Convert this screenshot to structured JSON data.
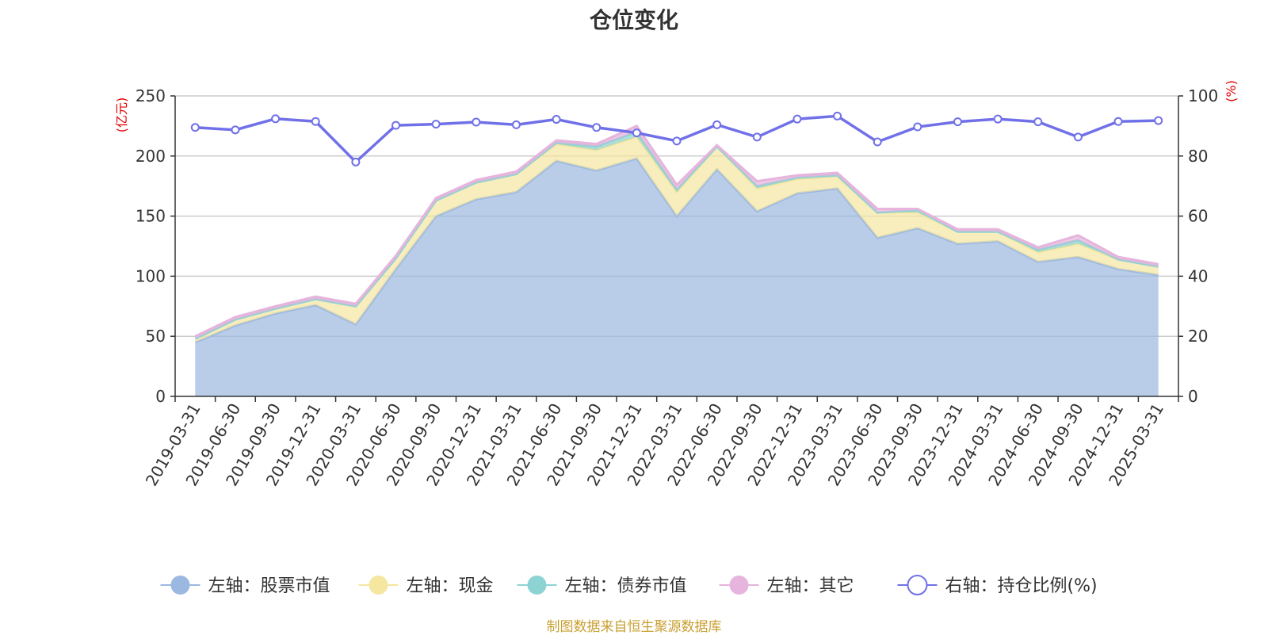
{
  "chart_data": {
    "type": "area",
    "title": "仓位变化",
    "left_axis_unit": "(亿元)",
    "right_axis_unit": "(%)",
    "left_ylim": [
      0,
      250
    ],
    "left_ticks": [
      0,
      50,
      100,
      150,
      200,
      250
    ],
    "right_ylim": [
      0,
      100
    ],
    "right_ticks": [
      0,
      20,
      40,
      60,
      80,
      100
    ],
    "grid": true,
    "legend_position": "bottom",
    "categories": [
      "2019-03-31",
      "2019-06-30",
      "2019-09-30",
      "2019-12-31",
      "2020-03-31",
      "2020-06-30",
      "2020-09-30",
      "2020-12-31",
      "2021-03-31",
      "2021-06-30",
      "2021-09-30",
      "2021-12-31",
      "2022-03-31",
      "2022-06-30",
      "2022-09-30",
      "2022-12-31",
      "2023-03-31",
      "2023-06-30",
      "2023-09-30",
      "2023-12-31",
      "2024-03-31",
      "2024-06-30",
      "2024-09-30",
      "2024-12-31",
      "2025-03-31"
    ],
    "series": [
      {
        "name": "左轴：股票市值",
        "axis": "left",
        "stack": true,
        "color": "#9bb8e0",
        "values": [
          45,
          59,
          69,
          76,
          60,
          106,
          150,
          164,
          170,
          196,
          188,
          198,
          150,
          189,
          154,
          169,
          173,
          132,
          140,
          127,
          129,
          112,
          116,
          106,
          101
        ]
      },
      {
        "name": "左轴：现金",
        "axis": "left",
        "stack": true,
        "color": "#f5e6a0",
        "values": [
          3,
          5,
          4,
          5,
          15,
          9,
          13,
          14,
          15,
          14,
          17,
          18,
          20,
          19,
          19,
          12,
          10,
          21,
          13,
          10,
          8,
          8,
          11,
          8,
          7
        ]
      },
      {
        "name": "左轴：债券市值",
        "axis": "left",
        "stack": true,
        "color": "#8ed3d4",
        "values": [
          0,
          0,
          0,
          0,
          0,
          0,
          0,
          0,
          0,
          1,
          3,
          4,
          2,
          0,
          2,
          1,
          1,
          0,
          2,
          0,
          0,
          2,
          3,
          0,
          0
        ]
      },
      {
        "name": "左轴：其它",
        "axis": "left",
        "stack": true,
        "color": "#e6b4dc",
        "values": [
          2,
          2,
          2,
          2,
          2,
          2,
          2,
          2,
          2,
          2,
          2,
          5,
          4,
          1,
          4,
          2,
          2,
          3,
          1,
          2,
          2,
          2,
          4,
          2,
          2
        ]
      },
      {
        "name": "右轴：持仓比例(%)",
        "axis": "right",
        "type": "line",
        "color": "#7070e8",
        "values": [
          89.5,
          88.7,
          92.4,
          91.5,
          78.0,
          90.2,
          90.6,
          91.3,
          90.4,
          92.2,
          89.5,
          87.7,
          85.0,
          90.4,
          86.3,
          92.3,
          93.3,
          84.7,
          89.7,
          91.4,
          92.3,
          91.4,
          86.3,
          91.5,
          91.8
        ]
      }
    ]
  },
  "source_text": "制图数据来自恒生聚源数据库"
}
